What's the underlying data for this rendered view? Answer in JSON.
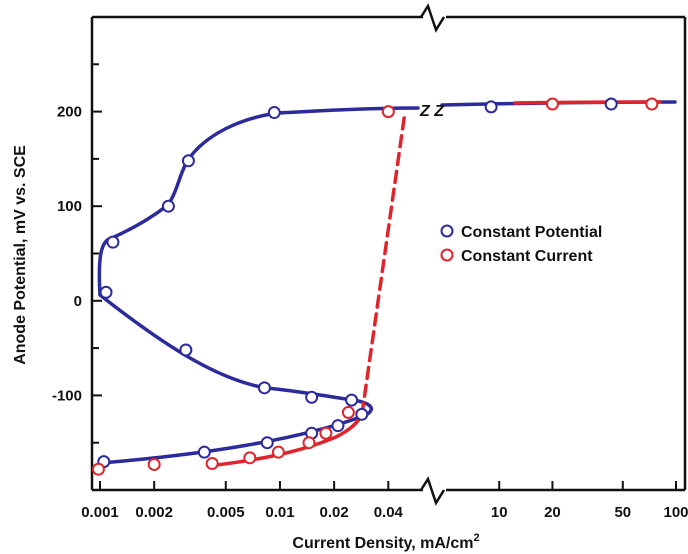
{
  "chart_data": {
    "type": "scatter",
    "xlabel": "Current Density, mA/cm",
    "xlabel_superscript": "2",
    "ylabel": "Anode Potential, mV vs. SCE",
    "x_scale": "log",
    "x_axis_break": true,
    "x_segments": [
      {
        "xlim": [
          0.001,
          0.06
        ],
        "ticks": [
          "0.001",
          "0.002",
          "0.005",
          "0.01",
          "0.02",
          "0.04"
        ]
      },
      {
        "xlim": [
          5,
          100
        ],
        "ticks": [
          "10",
          "20",
          "50",
          "100"
        ]
      }
    ],
    "ylim": [
      -200,
      300
    ],
    "yticks": [
      "-100",
      "0",
      "100",
      "200"
    ],
    "grid": false,
    "legend_position": "right-middle",
    "break_marks_text": "Z Z",
    "colors": {
      "constant_potential": "#2b2b9c",
      "constant_current": "#e0242b"
    },
    "series": [
      {
        "name": "Constant Potential",
        "color": "#2b2b9c",
        "points": [
          {
            "x": 0.00105,
            "y": -170
          },
          {
            "x": 0.0038,
            "y": -160
          },
          {
            "x": 0.0085,
            "y": -150
          },
          {
            "x": 0.015,
            "y": -140
          },
          {
            "x": 0.021,
            "y": -132
          },
          {
            "x": 0.0285,
            "y": -120
          },
          {
            "x": 0.025,
            "y": -105
          },
          {
            "x": 0.015,
            "y": -102
          },
          {
            "x": 0.0082,
            "y": -92
          },
          {
            "x": 0.003,
            "y": -52
          },
          {
            "x": 0.00108,
            "y": 9
          },
          {
            "x": 0.00118,
            "y": 62
          },
          {
            "x": 0.0024,
            "y": 100
          },
          {
            "x": 0.0031,
            "y": 148
          },
          {
            "x": 0.0093,
            "y": 199
          },
          {
            "x": 9,
            "y": 205
          },
          {
            "x": 43,
            "y": 208
          }
        ]
      },
      {
        "name": "Constant Current",
        "color": "#e0242b",
        "points": [
          {
            "x": 0.00098,
            "y": -178
          },
          {
            "x": 0.002,
            "y": -173
          },
          {
            "x": 0.0042,
            "y": -172
          },
          {
            "x": 0.0068,
            "y": -166
          },
          {
            "x": 0.0098,
            "y": -160
          },
          {
            "x": 0.0145,
            "y": -150
          },
          {
            "x": 0.018,
            "y": -140
          },
          {
            "x": 0.024,
            "y": -118
          },
          {
            "x": 0.04,
            "y": 200
          },
          {
            "x": 20,
            "y": 208
          },
          {
            "x": 73,
            "y": 208
          }
        ]
      }
    ]
  }
}
